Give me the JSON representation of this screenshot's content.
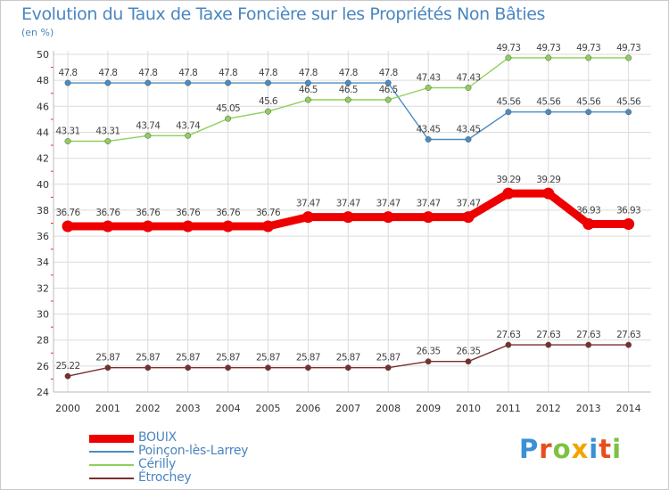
{
  "title": "Evolution du Taux de Taxe Foncière sur les Propriétés Non Bâties",
  "unit_label": "(en %)",
  "logo": {
    "text": "Proxiti",
    "letters": [
      "P",
      "r",
      "o",
      "x",
      "i",
      "t",
      "i"
    ],
    "colors": [
      "#3b8fd6",
      "#e84e1b",
      "#7cc242",
      "#f2a400",
      "#3b8fd6",
      "#e84e1b",
      "#7cc242"
    ]
  },
  "chart_data": {
    "type": "line",
    "x": [
      "2000",
      "2001",
      "2002",
      "2003",
      "2004",
      "2005",
      "2006",
      "2007",
      "2008",
      "2009",
      "2010",
      "2011",
      "2012",
      "2013",
      "2014"
    ],
    "ylim": [
      24,
      50
    ],
    "yticks": [
      24,
      26,
      28,
      30,
      32,
      34,
      36,
      38,
      40,
      42,
      44,
      46,
      48,
      50
    ],
    "grid": true,
    "legend_position": "bottom-left",
    "series": [
      {
        "name": "BOUIX",
        "color": "#ee0000",
        "emphasis": true,
        "values": [
          36.76,
          36.76,
          36.76,
          36.76,
          36.76,
          36.76,
          37.47,
          37.47,
          37.47,
          37.47,
          37.47,
          39.29,
          39.29,
          36.93,
          36.93
        ],
        "labels": [
          "36.76",
          "36.76",
          "36.76",
          "36.76",
          "36.76",
          "36.76",
          "37.47",
          "37.47",
          "37.47",
          "37.47",
          "37.47",
          "39.29",
          "39.29",
          "36.93",
          "36.93"
        ]
      },
      {
        "name": "Poinçon-lès-Larrey",
        "color": "#4a8cc4",
        "values": [
          47.8,
          47.8,
          47.8,
          47.8,
          47.8,
          47.8,
          47.8,
          47.8,
          47.8,
          43.45,
          43.45,
          45.56,
          45.56,
          45.56,
          45.56
        ],
        "labels": [
          "47.8",
          "47.8",
          "47.8",
          "47.8",
          "47.8",
          "47.8",
          "47.8",
          "47.8",
          "47.8",
          "43.45",
          "43.45",
          "45.56",
          "45.56",
          "45.56",
          "45.56"
        ]
      },
      {
        "name": "Cérilly",
        "color": "#8ed05a",
        "values": [
          43.31,
          43.31,
          43.74,
          43.74,
          45.05,
          45.6,
          46.5,
          46.5,
          46.5,
          47.43,
          47.43,
          49.73,
          49.73,
          49.73,
          49.73
        ],
        "labels": [
          "43.31",
          "43.31",
          "43.74",
          "43.74",
          "45.05",
          "45.6",
          "46.5",
          "46.5",
          "46.5",
          "47.43",
          "47.43",
          "49.73",
          "49.73",
          "49.73",
          "49.73"
        ]
      },
      {
        "name": "Étrochey",
        "color": "#7a2e2e",
        "values": [
          25.22,
          25.87,
          25.87,
          25.87,
          25.87,
          25.87,
          25.87,
          25.87,
          25.87,
          26.35,
          26.35,
          27.63,
          27.63,
          27.63,
          27.63
        ],
        "labels": [
          "25.22",
          "25.87",
          "25.87",
          "25.87",
          "25.87",
          "25.87",
          "25.87",
          "25.87",
          "25.87",
          "26.35",
          "26.35",
          "27.63",
          "27.63",
          "27.63",
          "27.63"
        ]
      }
    ]
  }
}
